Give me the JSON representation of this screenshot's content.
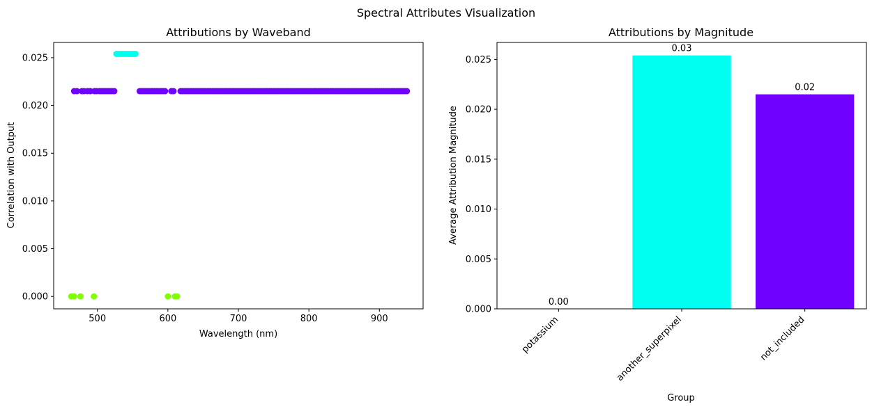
{
  "figure": {
    "suptitle": "Spectral Attributes Visualization"
  },
  "chart_data": [
    {
      "type": "scatter",
      "title": "Attributions by Waveband",
      "xlabel": "Wavelength (nm)",
      "ylabel": "Correlation with Output",
      "xlim": [
        438,
        962
      ],
      "ylim": [
        -0.0013,
        0.0266
      ],
      "xticks": [
        500,
        600,
        700,
        800,
        900
      ],
      "xtick_labels": [
        "500",
        "600",
        "700",
        "800",
        "900"
      ],
      "yticks": [
        0.0,
        0.005,
        0.01,
        0.015,
        0.02,
        0.025
      ],
      "ytick_labels": [
        "0.000",
        "0.005",
        "0.010",
        "0.015",
        "0.020",
        "0.025"
      ],
      "grid": false,
      "series": [
        {
          "color": "#7000ff",
          "y": 0.0215,
          "x": [
            467,
            471,
            478,
            481,
            486,
            490,
            496,
            499,
            503,
            506,
            509,
            512,
            515,
            518,
            521,
            524,
            560,
            563,
            566,
            569,
            572,
            575,
            578,
            581,
            584,
            587,
            590,
            593,
            596,
            605,
            608,
            618,
            621,
            624,
            627,
            630,
            633,
            636,
            639,
            642,
            645,
            648,
            651,
            654,
            657,
            660,
            663,
            666,
            669,
            672,
            675,
            678,
            681,
            684,
            687,
            690,
            693,
            696,
            699,
            702,
            705,
            708,
            711,
            714,
            717,
            720,
            723,
            726,
            729,
            732,
            735,
            738,
            741,
            744,
            747,
            750,
            753,
            756,
            759,
            762,
            765,
            768,
            771,
            774,
            777,
            780,
            783,
            786,
            789,
            792,
            795,
            798,
            801,
            804,
            807,
            810,
            813,
            816,
            819,
            822,
            825,
            828,
            831,
            834,
            837,
            840,
            843,
            846,
            849,
            852,
            855,
            858,
            861,
            864,
            867,
            870,
            873,
            876,
            879,
            882,
            885,
            888,
            891,
            894,
            897,
            900,
            903,
            906,
            909,
            912,
            915,
            918,
            921,
            924,
            927,
            930,
            933,
            936,
            939
          ]
        },
        {
          "color": "#00fff0",
          "y": 0.0254,
          "x": [
            527,
            530,
            533,
            536,
            539,
            542,
            545,
            548,
            551,
            554
          ]
        },
        {
          "color": "#80ff00",
          "y": 0.0,
          "x": [
            463,
            467,
            476,
            495,
            600,
            610,
            613
          ]
        }
      ]
    },
    {
      "type": "bar",
      "title": "Attributions by Magnitude",
      "xlabel": "Group",
      "ylabel": "Average Attribution Magnitude",
      "categories": [
        "potassium",
        "another_superpixel",
        "not_included"
      ],
      "values": [
        0.0,
        0.0254,
        0.0215
      ],
      "bar_labels": [
        "0.00",
        "0.03",
        "0.02"
      ],
      "colors": [
        "#80ff00",
        "#00fff0",
        "#7000ff"
      ],
      "ylim": [
        0,
        0.0267
      ],
      "yticks": [
        0.0,
        0.005,
        0.01,
        0.015,
        0.02,
        0.025
      ],
      "ytick_labels": [
        "0.000",
        "0.005",
        "0.010",
        "0.015",
        "0.020",
        "0.025"
      ],
      "grid": false
    }
  ]
}
